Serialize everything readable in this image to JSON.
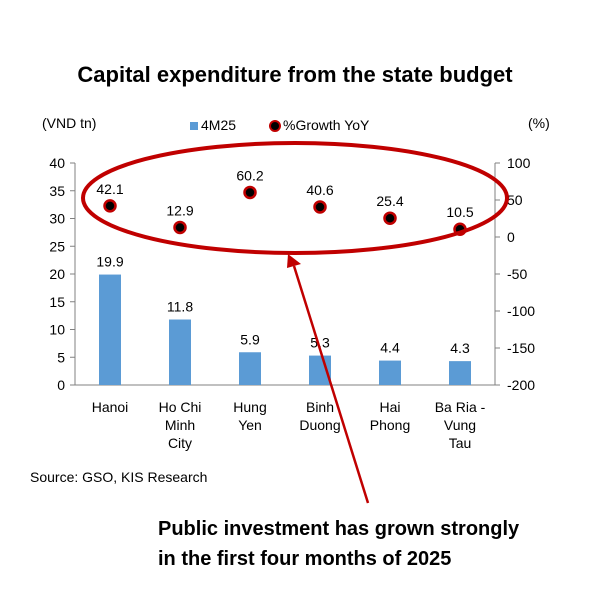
{
  "chart_data": {
    "type": "bar",
    "title": "Capital expenditure from the state budget",
    "left_unit": "(VND tn)",
    "right_unit": "(%)",
    "categories": [
      [
        "Hanoi"
      ],
      [
        "Ho Chi",
        "Minh",
        "City"
      ],
      [
        "Hung",
        "Yen"
      ],
      [
        "Binh",
        "Duong"
      ],
      [
        "Hai",
        "Phong"
      ],
      [
        "Ba Ria -",
        "Vung",
        "Tau"
      ]
    ],
    "series": [
      {
        "name": "4M25",
        "type": "bar",
        "axis": "left",
        "color": "#5B9BD5",
        "values": [
          19.9,
          11.8,
          5.9,
          5.3,
          4.4,
          4.3
        ]
      },
      {
        "name": "%Growth YoY",
        "type": "scatter",
        "axis": "right",
        "color": "#000000",
        "edge_color": "#C00000",
        "values": [
          42.1,
          12.9,
          60.2,
          40.6,
          25.4,
          10.5
        ]
      }
    ],
    "left_axis": {
      "min": 0,
      "max": 40,
      "ticks": [
        0,
        5,
        10,
        15,
        20,
        25,
        30,
        35,
        40
      ]
    },
    "right_axis": {
      "min": -200,
      "max": 100,
      "ticks": [
        -200,
        -150,
        -100,
        -50,
        0,
        50,
        100
      ]
    },
    "legend_position": "top-center",
    "grid": false,
    "source": "Source: GSO, KIS Research",
    "annotation": {
      "lines": [
        "Public investment has grown strongly",
        "in the first four months of 2025"
      ],
      "color": "#C00000"
    }
  }
}
